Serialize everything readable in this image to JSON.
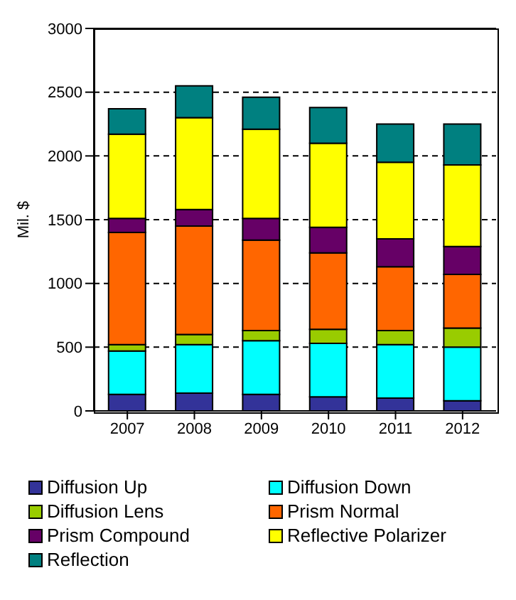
{
  "chart_data": {
    "type": "bar",
    "stacked": true,
    "ylabel": "Mil. $",
    "categories": [
      "2007",
      "2008",
      "2009",
      "2010",
      "2011",
      "2012"
    ],
    "series": [
      {
        "name": "Diffusion Up",
        "color": "#333399",
        "values": [
          130,
          140,
          130,
          110,
          100,
          80
        ]
      },
      {
        "name": "Diffusion Down",
        "color": "#00ffff",
        "values": [
          340,
          380,
          420,
          420,
          420,
          420
        ]
      },
      {
        "name": "Diffusion Lens",
        "color": "#99cc00",
        "values": [
          50,
          80,
          80,
          110,
          110,
          150
        ]
      },
      {
        "name": "Prism Normal",
        "color": "#ff6600",
        "values": [
          880,
          850,
          710,
          600,
          500,
          420
        ]
      },
      {
        "name": "Prism Compound",
        "color": "#660066",
        "values": [
          110,
          130,
          170,
          200,
          220,
          220
        ]
      },
      {
        "name": "Reflective Polarizer",
        "color": "#ffff00",
        "values": [
          660,
          720,
          700,
          660,
          600,
          640
        ]
      },
      {
        "name": "Reflection",
        "color": "#008080",
        "values": [
          200,
          250,
          250,
          280,
          300,
          320
        ]
      }
    ],
    "ylim": [
      0,
      3000
    ],
    "yticks": [
      0,
      500,
      1000,
      1500,
      2000,
      2500,
      3000
    ],
    "grid": "y",
    "legend": "bottom"
  }
}
